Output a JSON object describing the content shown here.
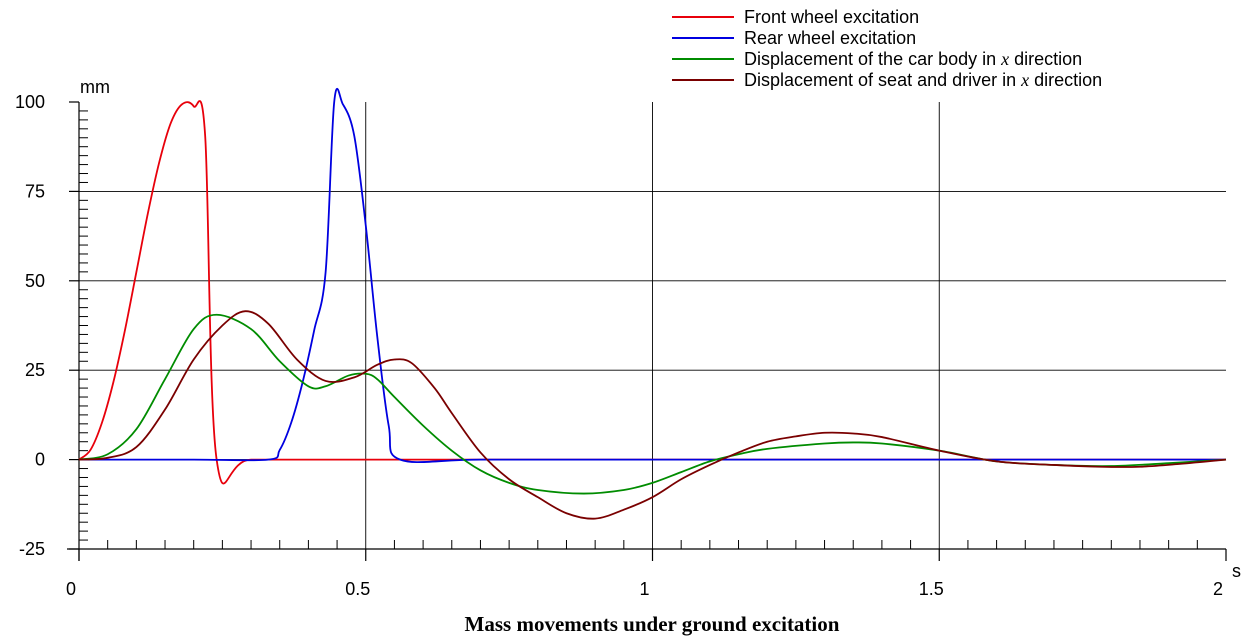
{
  "chart_data": {
    "type": "line",
    "title": "Mass movements under ground excitation",
    "xlabel": "s",
    "ylabel": "mm",
    "xlim": [
      0,
      2
    ],
    "ylim": [
      -25,
      100
    ],
    "x_ticks": [
      0,
      0.5,
      1,
      1.5,
      2
    ],
    "x_tick_labels": [
      "0",
      "0.5",
      "1",
      "1.5",
      "2"
    ],
    "y_ticks": [
      -25,
      0,
      25,
      50,
      75,
      100
    ],
    "y_tick_labels": [
      "-25",
      "0",
      "25",
      "50",
      "75",
      "100"
    ],
    "grid": true,
    "legend_position": "top-right",
    "series": [
      {
        "name": "Front wheel excitation",
        "color": "#e8000b",
        "x": [
          0,
          0.02,
          0.04,
          0.06,
          0.08,
          0.1,
          0.12,
          0.14,
          0.16,
          0.18,
          0.2,
          0.22,
          0.24,
          0.3,
          0.5,
          1.0,
          1.5,
          2.0
        ],
        "y": [
          0,
          2.7,
          10.3,
          21.7,
          36.1,
          52.4,
          68.8,
          83.2,
          94.1,
          99.4,
          98.8,
          90.5,
          0,
          0,
          0,
          0,
          0,
          0
        ]
      },
      {
        "name": "Rear wheel excitation",
        "color": "#0000e0",
        "x": [
          0,
          0.2,
          0.33,
          0.35,
          0.37,
          0.39,
          0.41,
          0.43,
          0.445,
          0.46,
          0.48,
          0.5,
          0.52,
          0.54,
          0.56,
          0.7,
          1.0,
          1.5,
          2.0
        ],
        "y": [
          0,
          0,
          0,
          2.7,
          10.3,
          21.7,
          36.1,
          52.4,
          100,
          99.4,
          90.5,
          65.5,
          34.5,
          9.5,
          0,
          0,
          0,
          0,
          0
        ]
      },
      {
        "name": "Displacement of the car body in x direction",
        "color": "#008c00",
        "x": [
          0,
          0.05,
          0.1,
          0.15,
          0.2,
          0.24,
          0.3,
          0.35,
          0.4,
          0.43,
          0.47,
          0.5,
          0.52,
          0.55,
          0.6,
          0.65,
          0.7,
          0.75,
          0.8,
          0.88,
          0.95,
          1.0,
          1.05,
          1.1,
          1.15,
          1.2,
          1.3,
          1.35,
          1.4,
          1.5,
          1.6,
          1.7,
          1.8,
          1.9,
          2.0
        ],
        "y": [
          0,
          1.5,
          8.5,
          22.5,
          36.5,
          40.5,
          36.5,
          27.5,
          20.5,
          20.5,
          23.5,
          24,
          22.5,
          17.5,
          9.5,
          2.5,
          -3,
          -6.5,
          -8.5,
          -9.5,
          -8.5,
          -6.5,
          -3.5,
          -0.5,
          1.5,
          3,
          4.5,
          4.8,
          4.5,
          2.5,
          -0.5,
          -1.5,
          -1.8,
          -1,
          0
        ]
      },
      {
        "name": "Displacement of seat and driver in x direction",
        "color": "#7a0000",
        "x": [
          0,
          0.05,
          0.1,
          0.15,
          0.2,
          0.25,
          0.29,
          0.33,
          0.38,
          0.43,
          0.48,
          0.52,
          0.55,
          0.58,
          0.62,
          0.65,
          0.7,
          0.75,
          0.8,
          0.85,
          0.9,
          0.95,
          1.0,
          1.05,
          1.1,
          1.15,
          1.2,
          1.25,
          1.3,
          1.35,
          1.4,
          1.5,
          1.6,
          1.7,
          1.78,
          1.85,
          1.92,
          2.0
        ],
        "y": [
          0,
          0.5,
          3.5,
          14,
          28,
          37.5,
          41.5,
          38,
          28,
          22,
          23,
          26.5,
          28,
          27,
          20,
          13,
          2,
          -5.5,
          -10.5,
          -15,
          -16.5,
          -14,
          -10.5,
          -5.5,
          -1.5,
          2,
          5,
          6.5,
          7.5,
          7.3,
          6.3,
          2.5,
          -0.5,
          -1.5,
          -2,
          -2,
          -1.2,
          0
        ]
      }
    ]
  },
  "legend": {
    "items": [
      {
        "label": "Front wheel excitation",
        "pre": "Front wheel excitation",
        "var": "",
        "post": ""
      },
      {
        "label": "Rear wheel excitation",
        "pre": "Rear wheel excitation",
        "var": "",
        "post": ""
      },
      {
        "label": "Displacement of the car body in x direction",
        "pre": "Displacement of the car body in ",
        "var": "x",
        "post": " direction"
      },
      {
        "label": "Displacement of seat and driver in x direction",
        "pre": "Displacement of seat and driver in ",
        "var": "x",
        "post": " direction"
      }
    ]
  }
}
